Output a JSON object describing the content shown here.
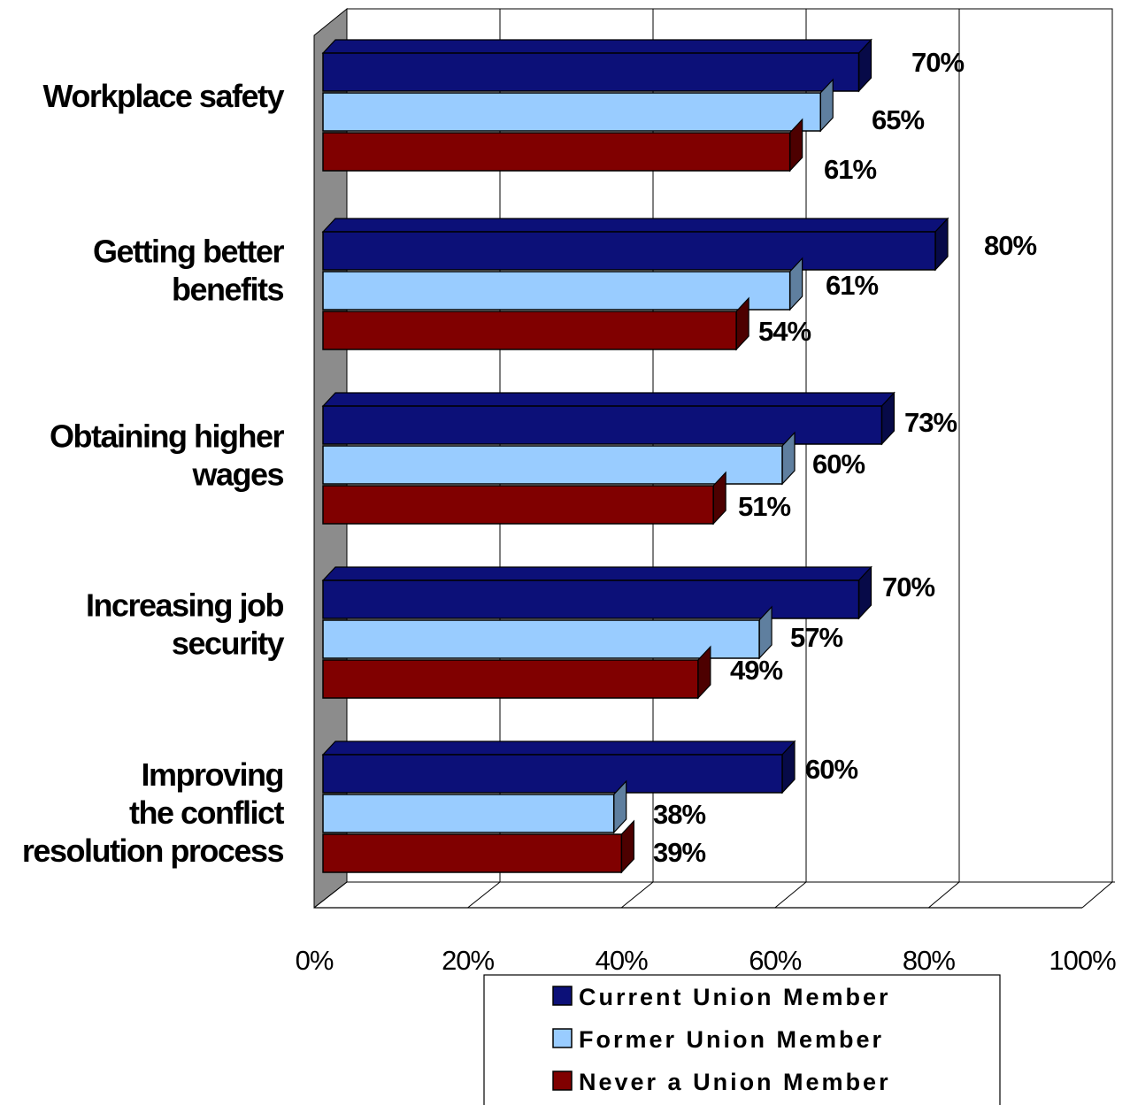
{
  "chart_data": {
    "type": "bar",
    "orientation": "horizontal",
    "three_d": true,
    "categories": [
      "Workplace safety",
      "Getting better benefits",
      "Obtaining higher wages",
      "Increasing job security",
      "Improving the conflict resolution process"
    ],
    "category_label_lines": [
      [
        "Workplace safety"
      ],
      [
        "Getting better",
        "benefits"
      ],
      [
        "Obtaining higher",
        "wages"
      ],
      [
        "Increasing job",
        "security"
      ],
      [
        "Improving",
        "the conflict",
        "resolution process"
      ]
    ],
    "series": [
      {
        "name": "Current Union Member",
        "values": [
          70,
          80,
          73,
          70,
          60
        ],
        "labels": [
          "70%",
          "80%",
          "73%",
          "70%",
          "60%"
        ],
        "color": "#0c1078",
        "side_color": "#070a48"
      },
      {
        "name": "Former Union Member",
        "values": [
          65,
          61,
          60,
          57,
          38
        ],
        "labels": [
          "65%",
          "61%",
          "60%",
          "57%",
          "38%"
        ],
        "color": "#99ccff",
        "side_color": "#5f7f9f"
      },
      {
        "name": "Never a Union Member",
        "values": [
          61,
          54,
          51,
          49,
          39
        ],
        "labels": [
          "61%",
          "54%",
          "51%",
          "49%",
          "39%"
        ],
        "color": "#800000",
        "side_color": "#4d0000"
      }
    ],
    "x_ticks": [
      "0%",
      "20%",
      "40%",
      "60%",
      "80%",
      "100%"
    ],
    "xlim": [
      0,
      100
    ],
    "grid": true,
    "legend_position": "bottom",
    "title": "",
    "xlabel": "",
    "ylabel": ""
  },
  "colors": {
    "back_wall": "#ffffff",
    "side_wall": "#8c8c8c",
    "grid": "#000000"
  }
}
